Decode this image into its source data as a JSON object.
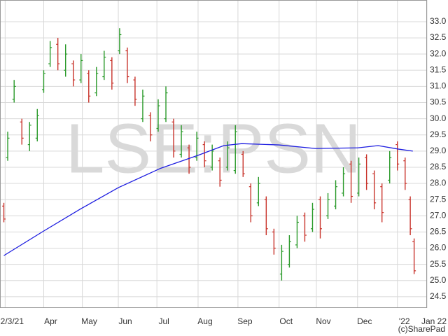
{
  "chart_data": {
    "type": "ohlc",
    "watermark": "LSE:PSN",
    "credit": "(c)SharePad",
    "up_color": "#2a9a2a",
    "down_color": "#c8322a",
    "grid": true,
    "x": [
      0,
      3,
      8,
      14,
      20,
      26,
      31,
      36,
      42,
      48,
      54,
      60,
      66,
      72,
      78,
      84,
      90,
      96,
      102,
      108,
      114,
      120,
      126,
      132,
      138,
      144,
      150,
      156,
      162,
      168,
      174,
      180,
      186,
      192,
      198,
      204,
      210,
      216,
      222,
      228,
      234,
      240,
      246,
      252,
      258,
      264,
      270,
      276,
      282,
      288,
      294,
      300,
      306,
      312,
      316,
      319
    ],
    "open": [
      27.3,
      28.8,
      30.6,
      29.9,
      29.2,
      29.4,
      30.9,
      31.7,
      32.3,
      31.5,
      31.7,
      31.2,
      31.4,
      30.8,
      31.3,
      31.8,
      32.1,
      32.1,
      31.2,
      30.0,
      30.1,
      29.7,
      30.0,
      29.9,
      28.9,
      29.1,
      28.8,
      29.2,
      28.5,
      28.7,
      28.5,
      28.4,
      28.9,
      27.9,
      27.4,
      27.5,
      26.5,
      25.2,
      25.5,
      26.1,
      27.0,
      26.6,
      27.5,
      27.0,
      27.3,
      27.7,
      28.6,
      27.7,
      28.8,
      28.3,
      27.9,
      28.1,
      29.2,
      28.7,
      27.5,
      26.2
    ],
    "high": [
      27.4,
      29.6,
      31.2,
      30.0,
      29.9,
      30.3,
      31.5,
      32.4,
      32.5,
      32.3,
      31.8,
      32.0,
      31.5,
      31.6,
      32.1,
      31.9,
      32.8,
      32.2,
      31.3,
      30.9,
      30.2,
      30.6,
      31.0,
      30.0,
      29.8,
      29.2,
      29.6,
      29.3,
      29.2,
      28.8,
      29.3,
      29.8,
      29.0,
      28.0,
      28.2,
      27.6,
      26.6,
      26.1,
      26.4,
      27.0,
      27.1,
      27.4,
      27.6,
      27.7,
      28.1,
      28.5,
      28.7,
      28.8,
      28.9,
      28.4,
      28.0,
      29.0,
      29.3,
      28.8,
      27.6,
      26.3
    ],
    "low": [
      26.8,
      28.7,
      30.5,
      29.2,
      29.0,
      29.3,
      30.8,
      31.6,
      31.5,
      31.3,
      31.0,
      31.1,
      30.5,
      30.7,
      31.2,
      30.9,
      32.0,
      31.1,
      30.4,
      29.9,
      29.3,
      29.6,
      29.9,
      28.8,
      28.8,
      28.3,
      28.7,
      28.5,
      28.4,
      27.9,
      28.4,
      28.3,
      28.2,
      26.8,
      27.3,
      26.4,
      25.8,
      25.0,
      25.4,
      26.0,
      26.2,
      26.5,
      26.3,
      26.9,
      27.2,
      27.6,
      27.4,
      27.6,
      27.8,
      27.2,
      26.8,
      28.0,
      28.4,
      27.8,
      26.4,
      25.2
    ],
    "close": [
      26.9,
      29.4,
      31.0,
      29.4,
      29.8,
      30.1,
      31.4,
      32.2,
      31.7,
      32.0,
      31.2,
      31.8,
      30.7,
      31.4,
      31.9,
      31.1,
      32.6,
      31.3,
      30.6,
      30.7,
      29.5,
      30.4,
      30.8,
      29.0,
      29.6,
      28.5,
      29.4,
      28.7,
      29.0,
      28.1,
      29.1,
      29.6,
      28.3,
      27.0,
      28.0,
      26.6,
      26.0,
      25.9,
      26.2,
      26.8,
      26.4,
      27.2,
      26.6,
      27.5,
      27.9,
      28.3,
      27.6,
      28.6,
      28.0,
      27.4,
      27.1,
      28.8,
      28.6,
      28.0,
      26.6,
      25.3
    ],
    "moving_average": {
      "color": "#1c1ce0",
      "x": [
        0,
        31,
        60,
        89,
        122,
        151,
        171,
        185,
        214,
        242,
        275,
        291,
        307,
        318
      ],
      "values": [
        25.77,
        26.53,
        27.22,
        27.87,
        28.47,
        28.87,
        29.17,
        29.23,
        29.19,
        29.08,
        29.1,
        29.17,
        29.06,
        29.0
      ]
    },
    "xlim": [
      -3,
      329
    ],
    "xticks": [
      {
        "value": 1,
        "label": "2/3/21"
      },
      {
        "value": 31,
        "label": "Apr"
      },
      {
        "value": 61,
        "label": "May"
      },
      {
        "value": 89,
        "label": "Jun"
      },
      {
        "value": 119,
        "label": "Jul"
      },
      {
        "value": 151,
        "label": "Aug"
      },
      {
        "value": 182,
        "label": "Sep"
      },
      {
        "value": 214,
        "label": "Oct"
      },
      {
        "value": 243,
        "label": "Nov"
      },
      {
        "value": 275,
        "label": "Dec"
      },
      {
        "value": 306,
        "label": "'22"
      },
      {
        "value": 329,
        "label": "Jan 22"
      }
    ],
    "ylim": [
      24.15,
      33.67
    ],
    "yticks": [
      24.5,
      {
        "value": 25,
        "label": "25.0"
      },
      25.5,
      {
        "value": 26,
        "label": "26.0"
      },
      26.5,
      {
        "value": 27,
        "label": "27.0"
      },
      27.5,
      {
        "value": 28,
        "label": "28.0"
      },
      28.5,
      {
        "value": 29,
        "label": "29.0"
      },
      29.5,
      {
        "value": 30,
        "label": "30.0"
      },
      30.5,
      {
        "value": 31,
        "label": "31.0"
      },
      31.5,
      {
        "value": 32,
        "label": "32.0"
      },
      32.5,
      {
        "value": 33,
        "label": "33.0"
      }
    ]
  }
}
